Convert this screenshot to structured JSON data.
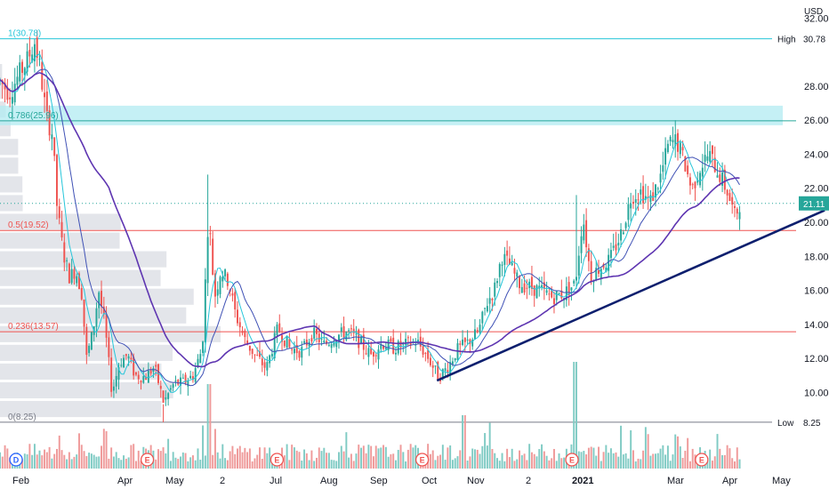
{
  "chart_data": {
    "type": "candlestick",
    "currency": "USD",
    "y_axis": {
      "ticks": [
        "32.00",
        "30.78",
        "28.00",
        "26.00",
        "24.00",
        "22.00",
        "21.11",
        "20.00",
        "18.00",
        "16.00",
        "14.00",
        "12.00",
        "10.00",
        "8.25"
      ],
      "values": [
        32,
        28,
        26,
        24,
        22,
        20,
        18,
        16,
        14,
        12,
        10
      ],
      "range": [
        7.2,
        32.8
      ],
      "scale": "linear",
      "grid": false
    },
    "x_axis": {
      "labels": [
        {
          "text": "Feb",
          "bold": false
        },
        {
          "text": "Apr",
          "bold": false
        },
        {
          "text": "May",
          "bold": false
        },
        {
          "text": "2",
          "bold": false
        },
        {
          "text": "Jul",
          "bold": false
        },
        {
          "text": "Aug",
          "bold": false
        },
        {
          "text": "Sep",
          "bold": false
        },
        {
          "text": "Oct",
          "bold": false
        },
        {
          "text": "Nov",
          "bold": false
        },
        {
          "text": "2",
          "bold": false
        },
        {
          "text": "2021",
          "bold": true
        },
        {
          "text": "Mar",
          "bold": false
        },
        {
          "text": "Apr",
          "bold": false
        },
        {
          "text": "May",
          "bold": false
        }
      ]
    },
    "price_tags": {
      "high_label": "High",
      "high_value": "30.78",
      "low_label": "Low",
      "low_value": "8.25",
      "last_value": "21.11",
      "last_color": "#26a69a"
    },
    "fib_levels": [
      {
        "label": "1(30.78)",
        "value": 30.78,
        "color": "#26c6da"
      },
      {
        "label": "0.786(25.96)",
        "value": 25.96,
        "color": "#26a69a"
      },
      {
        "label": "0.5(19.52)",
        "value": 19.52,
        "color": "#ef5350"
      },
      {
        "label": "0.236(13.57)",
        "value": 13.57,
        "color": "#ef5350"
      },
      {
        "label": "0(8.25)",
        "value": 8.25,
        "color": "#787b86"
      }
    ],
    "resistance_zone": {
      "low": 25.7,
      "high": 26.85,
      "color": "#b2ebf2"
    },
    "trendline": {
      "start": {
        "t": 0.566,
        "price": 10.7
      },
      "end": {
        "t": 0.999,
        "price": 20.6
      },
      "color": "#0d1f6e"
    },
    "events": [
      {
        "code": "D",
        "t": 0.03,
        "color": "#2962ff"
      },
      {
        "code": "E",
        "t": 0.2,
        "color": "#ef5350"
      },
      {
        "code": "E",
        "t": 0.368,
        "color": "#ef5350"
      },
      {
        "code": "E",
        "t": 0.556,
        "color": "#ef5350"
      },
      {
        "code": "E",
        "t": 0.75,
        "color": "#ef5350"
      },
      {
        "code": "E",
        "t": 0.918,
        "color": "#ef5350"
      }
    ],
    "colors": {
      "up": "#26a69a",
      "down": "#ef5350",
      "ma_fast": "#26c6da",
      "ma_mid": "#3f51b5",
      "ma_slow": "#5e35b1",
      "volume_up": "#80cbc4",
      "volume_down": "#ef9a9a",
      "profile": "#d1d4dc"
    },
    "price_path": [
      [
        0.0,
        28.3
      ],
      [
        0.012,
        27.6
      ],
      [
        0.025,
        28.7
      ],
      [
        0.035,
        29.5
      ],
      [
        0.045,
        30.6
      ],
      [
        0.052,
        29.0
      ],
      [
        0.06,
        26.2
      ],
      [
        0.068,
        25.2
      ],
      [
        0.074,
        20.8
      ],
      [
        0.082,
        18.2
      ],
      [
        0.09,
        16.8
      ],
      [
        0.098,
        17.2
      ],
      [
        0.106,
        15.8
      ],
      [
        0.112,
        12.0
      ],
      [
        0.12,
        13.5
      ],
      [
        0.128,
        16.0
      ],
      [
        0.136,
        13.8
      ],
      [
        0.145,
        10.0
      ],
      [
        0.155,
        11.8
      ],
      [
        0.165,
        12.2
      ],
      [
        0.175,
        11.0
      ],
      [
        0.188,
        10.9
      ],
      [
        0.2,
        11.5
      ],
      [
        0.212,
        9.4
      ],
      [
        0.225,
        10.5
      ],
      [
        0.238,
        10.6
      ],
      [
        0.25,
        11.0
      ],
      [
        0.262,
        12.6
      ],
      [
        0.27,
        20.5
      ],
      [
        0.278,
        15.6
      ],
      [
        0.286,
        17.2
      ],
      [
        0.296,
        16.5
      ],
      [
        0.305,
        14.6
      ],
      [
        0.318,
        13.0
      ],
      [
        0.33,
        12.2
      ],
      [
        0.345,
        11.4
      ],
      [
        0.36,
        13.8
      ],
      [
        0.375,
        12.6
      ],
      [
        0.39,
        12.4
      ],
      [
        0.405,
        13.5
      ],
      [
        0.42,
        12.8
      ],
      [
        0.435,
        13.3
      ],
      [
        0.45,
        13.6
      ],
      [
        0.465,
        13.0
      ],
      [
        0.48,
        12.2
      ],
      [
        0.495,
        12.9
      ],
      [
        0.51,
        12.6
      ],
      [
        0.525,
        12.8
      ],
      [
        0.54,
        13.0
      ],
      [
        0.555,
        12.0
      ],
      [
        0.568,
        10.9
      ],
      [
        0.58,
        11.5
      ],
      [
        0.592,
        12.5
      ],
      [
        0.605,
        12.9
      ],
      [
        0.62,
        13.6
      ],
      [
        0.63,
        15.2
      ],
      [
        0.64,
        16.0
      ],
      [
        0.65,
        18.0
      ],
      [
        0.66,
        17.5
      ],
      [
        0.672,
        16.4
      ],
      [
        0.685,
        16.2
      ],
      [
        0.7,
        16.0
      ],
      [
        0.715,
        15.6
      ],
      [
        0.73,
        15.8
      ],
      [
        0.745,
        16.4
      ],
      [
        0.755,
        20.4
      ],
      [
        0.765,
        16.8
      ],
      [
        0.778,
        17.4
      ],
      [
        0.79,
        17.8
      ],
      [
        0.805,
        19.4
      ],
      [
        0.818,
        21.6
      ],
      [
        0.83,
        21.8
      ],
      [
        0.842,
        21.2
      ],
      [
        0.855,
        22.6
      ],
      [
        0.866,
        24.6
      ],
      [
        0.876,
        24.8
      ],
      [
        0.886,
        23.6
      ],
      [
        0.896,
        21.9
      ],
      [
        0.906,
        23.2
      ],
      [
        0.918,
        24.0
      ],
      [
        0.93,
        23.0
      ],
      [
        0.942,
        21.8
      ],
      [
        0.952,
        20.3
      ],
      [
        0.958,
        21.1
      ]
    ]
  }
}
